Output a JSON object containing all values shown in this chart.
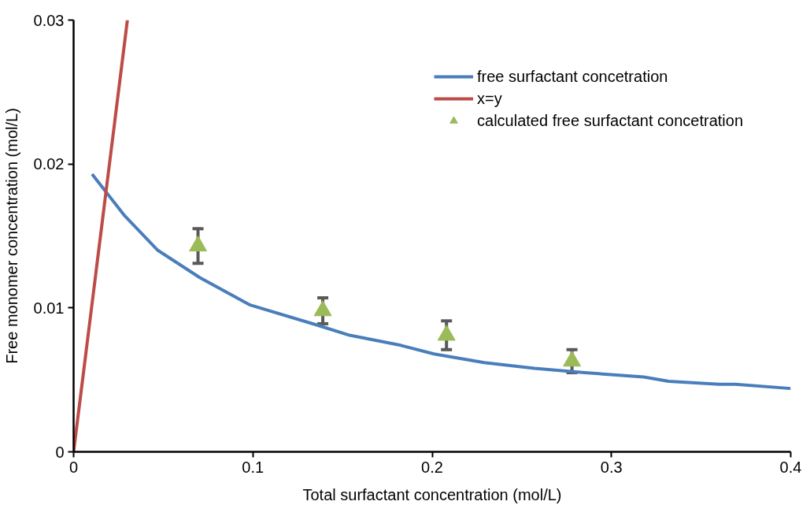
{
  "chart_data": {
    "type": "line",
    "xlabel": "Total surfactant concentration (mol/L)",
    "ylabel": "Free monomer concentration (mol/L)",
    "xlim": [
      0,
      0.4
    ],
    "ylim": [
      0,
      0.03
    ],
    "xticks": [
      0,
      0.1,
      0.2,
      0.3,
      0.4
    ],
    "yticks": [
      0,
      0.01,
      0.02,
      0.03
    ],
    "grid": false,
    "legend": "top right",
    "series": [
      {
        "name": "free surfactant concetration",
        "color": "#4a7ebb",
        "x": [
          0.0103,
          0.0285,
          0.047,
          0.0705,
          0.0985,
          0.136,
          0.154,
          0.1825,
          0.201,
          0.229,
          0.257,
          0.285,
          0.318,
          0.332,
          0.36,
          0.369,
          0.4
        ],
        "values": [
          0.0193,
          0.0164,
          0.014,
          0.0121,
          0.0102,
          0.0088,
          0.0081,
          0.0074,
          0.0068,
          0.0062,
          0.0058,
          0.0055,
          0.0052,
          0.0049,
          0.0047,
          0.0047,
          0.0044
        ]
      },
      {
        "name": "x=y",
        "color": "#be4b48",
        "x": [
          0,
          0.03
        ],
        "values": [
          0,
          0.03
        ]
      },
      {
        "name": "calculated free surfactant concetration",
        "type": "scatter",
        "marker": "triangle",
        "color": "#9bbb59",
        "x": [
          0.0694,
          0.139,
          0.208,
          0.278
        ],
        "values": [
          0.0143,
          0.0098,
          0.0081,
          0.0063
        ],
        "errors": [
          0.0012,
          0.0009,
          0.001,
          0.0008
        ]
      }
    ]
  }
}
